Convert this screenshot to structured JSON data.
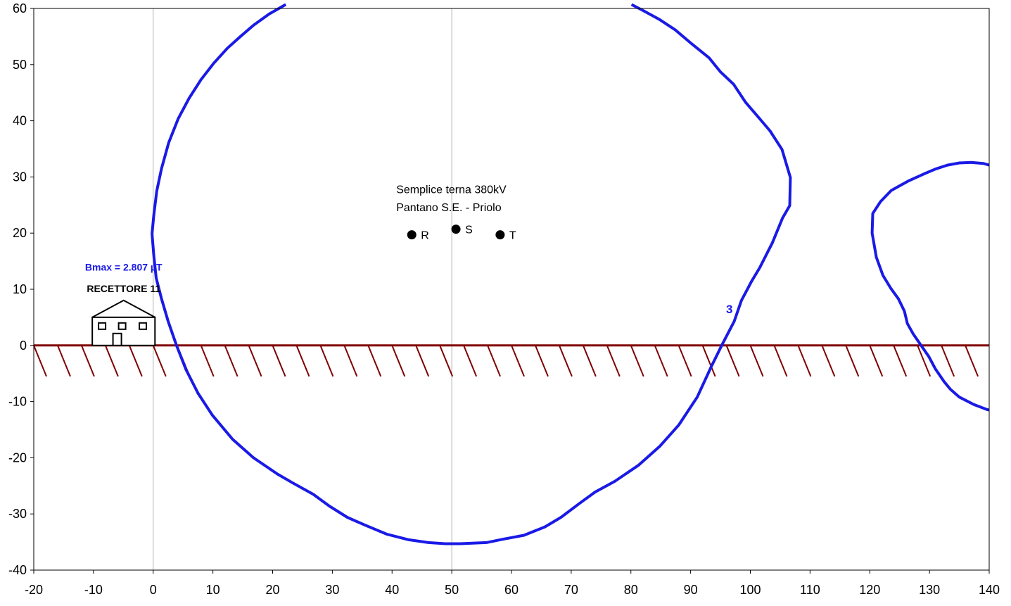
{
  "chart_data": {
    "type": "line",
    "title": "",
    "xlabel": "",
    "ylabel": "",
    "xlim": [
      -20,
      140
    ],
    "ylim": [
      -40,
      60
    ],
    "xticks": [
      -20,
      -10,
      0,
      10,
      20,
      30,
      40,
      50,
      60,
      70,
      80,
      90,
      100,
      110,
      120,
      130,
      140
    ],
    "yticks": [
      -40,
      -30,
      -20,
      -10,
      0,
      10,
      20,
      30,
      40,
      50,
      60
    ],
    "grid": "x=0 and x=50 vertical lines only",
    "colors": {
      "contour": "#1a1ae6",
      "ground": "#800000",
      "grid": "#b4b4b4"
    },
    "line_annotation": [
      "Semplice terna 380kV",
      "Pantano S.E. - Priolo"
    ],
    "conductors": [
      {
        "label": "R",
        "x": 43.3,
        "y": 19.7
      },
      {
        "label": "S",
        "x": 50.7,
        "y": 20.7
      },
      {
        "label": "T",
        "x": 58.1,
        "y": 19.7
      }
    ],
    "receptor": {
      "name": "RECETTORE 11",
      "bmax": "Bmax = 2.807 µT",
      "icon": "house-icon",
      "x_from": -10.2,
      "x_to": 0.3
    },
    "ground_level": 0,
    "series": [
      {
        "name": "3",
        "label_position": [
          96.5,
          6.5
        ],
        "points": [
          [
            22.2,
            60.7
          ],
          [
            19.4,
            59
          ],
          [
            16.8,
            57
          ],
          [
            14.5,
            54.9
          ],
          [
            12.4,
            52.9
          ],
          [
            10.1,
            50.2
          ],
          [
            8,
            47.3
          ],
          [
            6,
            44
          ],
          [
            4.2,
            40.4
          ],
          [
            2.6,
            36.1
          ],
          [
            1.4,
            31.5
          ],
          [
            0.6,
            27.5
          ],
          [
            0.1,
            23.2
          ],
          [
            -0.2,
            19.9
          ],
          [
            0.1,
            16
          ],
          [
            0.5,
            12
          ],
          [
            1.4,
            8.3
          ],
          [
            2.5,
            4.3
          ],
          [
            3.9,
            0
          ],
          [
            5.5,
            -4.3
          ],
          [
            7.5,
            -8.5
          ],
          [
            9.9,
            -12.4
          ],
          [
            13.3,
            -16.7
          ],
          [
            16.8,
            -20
          ],
          [
            20.8,
            -22.9
          ],
          [
            23.4,
            -24.5
          ],
          [
            26.8,
            -26.5
          ],
          [
            29.5,
            -28.6
          ],
          [
            32.5,
            -30.6
          ],
          [
            35.5,
            -32
          ],
          [
            39.1,
            -33.6
          ],
          [
            42.8,
            -34.6
          ],
          [
            46.1,
            -35.1
          ],
          [
            48.9,
            -35.3
          ],
          [
            51.4,
            -35.3
          ],
          [
            55.8,
            -35.1
          ],
          [
            58.6,
            -34.5
          ],
          [
            62.1,
            -33.8
          ],
          [
            65.6,
            -32.3
          ],
          [
            68.3,
            -30.6
          ],
          [
            71.3,
            -28.2
          ],
          [
            74,
            -26.1
          ],
          [
            77.3,
            -24.2
          ],
          [
            81.3,
            -21.3
          ],
          [
            84.9,
            -17.9
          ],
          [
            88,
            -14.2
          ],
          [
            91.1,
            -9.2
          ],
          [
            93.4,
            -3.9
          ],
          [
            95.2,
            0
          ],
          [
            97.3,
            4.3
          ],
          [
            98.5,
            8
          ],
          [
            100.2,
            11.4
          ],
          [
            101.6,
            13.9
          ],
          [
            103.7,
            18.3
          ],
          [
            105.4,
            22.7
          ],
          [
            106.6,
            24.9
          ],
          [
            106.7,
            29.9
          ],
          [
            105.3,
            34.9
          ],
          [
            103.3,
            38.2
          ],
          [
            101.3,
            40.7
          ],
          [
            99.2,
            43.3
          ],
          [
            97.2,
            46.5
          ],
          [
            95,
            48.7
          ],
          [
            93.1,
            51.2
          ],
          [
            90.3,
            53.6
          ],
          [
            87.4,
            56.2
          ],
          [
            84.7,
            58.1
          ],
          [
            82.1,
            59.6
          ],
          [
            80.1,
            60.7
          ]
        ]
      },
      {
        "name": "",
        "points": [
          [
            140,
            32.1
          ],
          [
            139,
            32.4
          ],
          [
            137,
            32.6
          ],
          [
            135,
            32.5
          ],
          [
            133,
            32.1
          ],
          [
            131,
            31.4
          ],
          [
            129,
            30.5
          ],
          [
            126.5,
            29.3
          ],
          [
            123.6,
            27.6
          ],
          [
            121.8,
            25.6
          ],
          [
            120.5,
            23.5
          ],
          [
            120.4,
            20
          ],
          [
            121.1,
            15.7
          ],
          [
            122.2,
            12.5
          ],
          [
            123.5,
            10.2
          ],
          [
            124.8,
            8.3
          ],
          [
            125.8,
            6.1
          ],
          [
            126.3,
            3.9
          ],
          [
            127.3,
            2
          ],
          [
            128.6,
            0
          ],
          [
            129.9,
            -2
          ],
          [
            131,
            -4.2
          ],
          [
            132.5,
            -6.5
          ],
          [
            133.5,
            -7.8
          ],
          [
            135,
            -9.2
          ],
          [
            137.4,
            -10.5
          ],
          [
            139.6,
            -11.4
          ],
          [
            140,
            -11.5
          ]
        ]
      }
    ]
  }
}
